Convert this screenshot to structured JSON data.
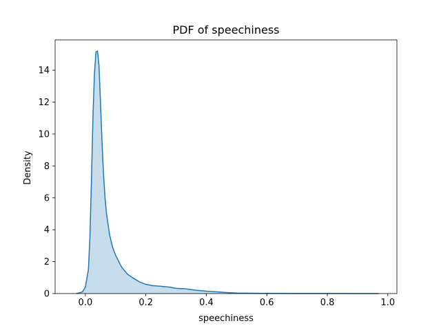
{
  "chart_data": {
    "type": "area",
    "title": "PDF of speechiness",
    "xlabel": "speechiness",
    "ylabel": "Density",
    "xlim": [
      -0.1,
      1.03
    ],
    "ylim": [
      0,
      15.9
    ],
    "x_ticks": [
      0.0,
      0.2,
      0.4,
      0.6,
      0.8,
      1.0
    ],
    "x_tick_labels": [
      "0.0",
      "0.2",
      "0.4",
      "0.6",
      "0.8",
      "1.0"
    ],
    "y_ticks": [
      0,
      2,
      4,
      6,
      8,
      10,
      12,
      14
    ],
    "y_tick_labels": [
      "0",
      "2",
      "4",
      "6",
      "8",
      "10",
      "12",
      "14"
    ],
    "grid": false,
    "legend": "none",
    "series": [
      {
        "color": "#1f77b4",
        "fill_color": "#1f77b4",
        "fill_opacity": 0.25,
        "x": [
          -0.03,
          -0.01,
          0.0,
          0.01,
          0.015,
          0.02,
          0.025,
          0.03,
          0.035,
          0.04,
          0.045,
          0.05,
          0.055,
          0.06,
          0.065,
          0.07,
          0.08,
          0.09,
          0.1,
          0.12,
          0.14,
          0.16,
          0.18,
          0.2,
          0.22,
          0.25,
          0.28,
          0.3,
          0.33,
          0.36,
          0.4,
          0.44,
          0.47,
          0.5,
          0.55,
          0.6,
          0.7,
          0.8,
          0.9,
          0.97
        ],
        "y": [
          0.0,
          0.1,
          0.4,
          1.5,
          3.5,
          7.0,
          11.0,
          13.8,
          15.15,
          15.2,
          14.3,
          12.0,
          9.5,
          7.5,
          6.0,
          5.0,
          3.7,
          2.9,
          2.4,
          1.65,
          1.2,
          0.95,
          0.72,
          0.58,
          0.5,
          0.46,
          0.4,
          0.33,
          0.3,
          0.22,
          0.15,
          0.1,
          0.06,
          0.03,
          0.02,
          0.01,
          0.005,
          0.003,
          0.002,
          0.0
        ]
      }
    ]
  }
}
